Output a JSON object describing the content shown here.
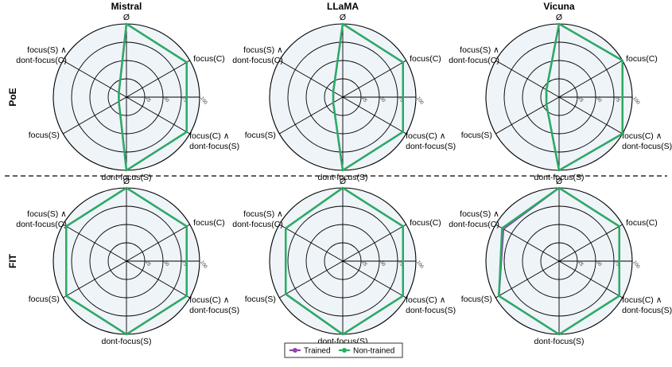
{
  "chart_data": {
    "type": "radar",
    "columns": [
      "Mistral",
      "LLaMA",
      "Vicuna"
    ],
    "rows": [
      "PoE",
      "FIT"
    ],
    "axes": [
      "Ø",
      "focus(C)",
      "focus(C) ∧\ndont-focus(S)",
      "dont-focus(S)",
      "focus(S)",
      "focus(S) ∧\ndont-focus(C)"
    ],
    "rlim": [
      0,
      100
    ],
    "rticks": [
      25,
      50,
      75,
      100
    ],
    "rtick_labels": [
      "25",
      "50",
      "75",
      "100"
    ],
    "grid": true,
    "legend": {
      "placement": "bottom-center",
      "entries": [
        {
          "name": "Trained",
          "color": "#8e44ad"
        },
        {
          "name": "Non-trained",
          "color": "#27ae60"
        }
      ]
    },
    "panels": [
      {
        "row": "PoE",
        "column": "Mistral",
        "series": [
          {
            "name": "Trained",
            "values": [
              100,
              95,
              95,
              100,
              12,
              12
            ]
          },
          {
            "name": "Non-trained",
            "values": [
              100,
              95,
              95,
              100,
              12,
              12
            ]
          }
        ]
      },
      {
        "row": "PoE",
        "column": "LLaMA",
        "series": [
          {
            "name": "Trained",
            "values": [
              100,
              95,
              95,
              100,
              15,
              15
            ]
          },
          {
            "name": "Non-trained",
            "values": [
              100,
              95,
              95,
              100,
              15,
              15
            ]
          }
        ]
      },
      {
        "row": "PoE",
        "column": "Vicuna",
        "series": [
          {
            "name": "Trained",
            "values": [
              100,
              100,
              100,
              100,
              20,
              20
            ]
          },
          {
            "name": "Non-trained",
            "values": [
              100,
              100,
              100,
              100,
              20,
              20
            ]
          }
        ]
      },
      {
        "row": "FIT",
        "column": "Mistral",
        "series": [
          {
            "name": "Trained",
            "values": [
              100,
              95,
              95,
              100,
              95,
              95
            ]
          },
          {
            "name": "Non-trained",
            "values": [
              100,
              95,
              95,
              100,
              95,
              95
            ]
          }
        ]
      },
      {
        "row": "FIT",
        "column": "LLaMA",
        "series": [
          {
            "name": "Trained",
            "values": [
              100,
              95,
              95,
              100,
              90,
              90
            ]
          },
          {
            "name": "Non-trained",
            "values": [
              100,
              95,
              95,
              100,
              90,
              90
            ]
          }
        ]
      },
      {
        "row": "FIT",
        "column": "Vicuna",
        "series": [
          {
            "name": "Trained",
            "values": [
              100,
              95,
              95,
              100,
              95,
              88
            ]
          },
          {
            "name": "Non-trained",
            "values": [
              100,
              95,
              95,
              100,
              95,
              90
            ]
          }
        ]
      }
    ]
  }
}
